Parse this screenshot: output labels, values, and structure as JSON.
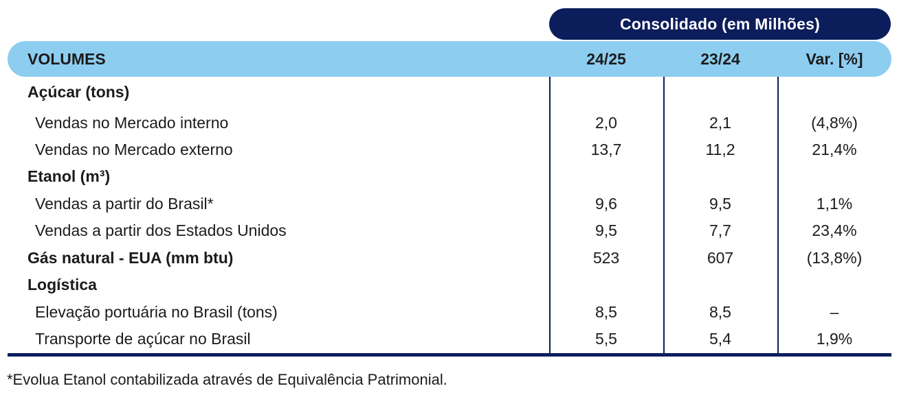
{
  "header": {
    "group_label": "Consolidado (em Milhões)",
    "volumes": "VOLUMES",
    "col1": "24/25",
    "col2": "23/24",
    "col3": "Var. [%]"
  },
  "rows": [
    {
      "label": "Açúcar (tons)",
      "v1": "",
      "v2": "",
      "v3": ""
    },
    {
      "label": "Vendas no Mercado interno",
      "v1": "2,0",
      "v2": "2,1",
      "v3": "(4,8%)"
    },
    {
      "label": "Vendas no Mercado externo",
      "v1": "13,7",
      "v2": "11,2",
      "v3": "21,4%"
    },
    {
      "label": "Etanol (m³)",
      "v1": "",
      "v2": "",
      "v3": ""
    },
    {
      "label": "Vendas a partir do Brasil*",
      "v1": "9,6",
      "v2": "9,5",
      "v3": "1,1%"
    },
    {
      "label": "Vendas a partir dos Estados Unidos",
      "v1": "9,5",
      "v2": "7,7",
      "v3": "23,4%"
    },
    {
      "label": "Gás natural - EUA (mm btu)",
      "v1": "523",
      "v2": "607",
      "v3": "(13,8%)"
    },
    {
      "label": "Logística",
      "v1": "",
      "v2": "",
      "v3": ""
    },
    {
      "label": "Elevação portuária no Brasil (tons)",
      "v1": "8,5",
      "v2": "8,5",
      "v3": "–"
    },
    {
      "label": "Transporte de açúcar no Brasil",
      "v1": "5,5",
      "v2": "5,4",
      "v3": "1,9%"
    }
  ],
  "footnote": "*Evolua Etanol contabilizada através de Equivalência Patrimonial."
}
